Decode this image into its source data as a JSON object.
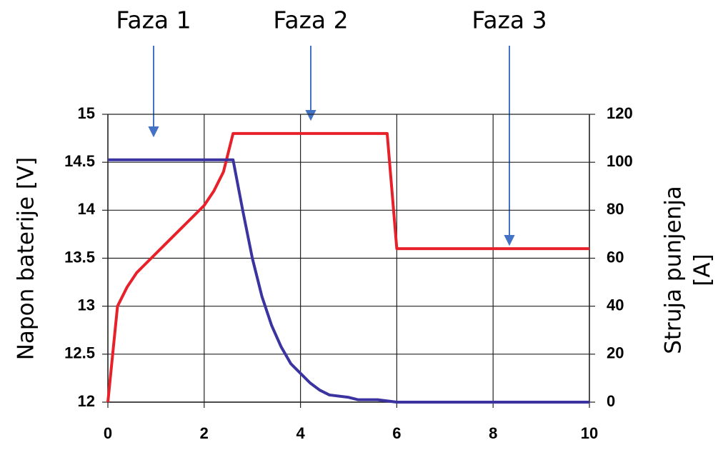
{
  "chart_data": {
    "type": "line",
    "annotations": [
      "Faza 1",
      "Faza 2",
      "Faza 3"
    ],
    "ylabel": "Napon baterije [V]",
    "y2label": [
      "Struja punjenja",
      "[A]"
    ],
    "xlim": [
      0,
      10
    ],
    "xticks": [
      0,
      2,
      4,
      6,
      8,
      10
    ],
    "ylim": [
      12,
      15
    ],
    "yticks": [
      12,
      12.5,
      13,
      13.5,
      14,
      14.5,
      15
    ],
    "y2lim": [
      0,
      120
    ],
    "y2ticks": [
      0,
      20,
      40,
      60,
      80,
      100,
      120
    ],
    "grid": true,
    "series": [
      {
        "color": "#e8202a",
        "x": [
          0,
          0.2,
          0.4,
          0.6,
          0.9,
          1.2,
          1.6,
          2.0,
          2.2,
          2.4,
          2.6,
          5.8,
          6.0,
          10
        ],
        "values": [
          12,
          13,
          13.2,
          13.35,
          13.5,
          13.65,
          13.85,
          14.05,
          14.2,
          14.4,
          14.8,
          14.8,
          13.6,
          13.6
        ]
      },
      {
        "color": "#3b33a0",
        "axis": "y2",
        "x": [
          0,
          2.6,
          2.8,
          3.0,
          3.2,
          3.4,
          3.6,
          3.8,
          4.0,
          4.2,
          4.4,
          4.6,
          5.0,
          5.2,
          5.6,
          6.0,
          10
        ],
        "values": [
          101,
          101,
          80,
          60,
          44,
          32,
          23,
          16,
          12,
          8,
          5,
          3,
          2,
          1,
          1,
          0,
          0
        ]
      }
    ]
  }
}
